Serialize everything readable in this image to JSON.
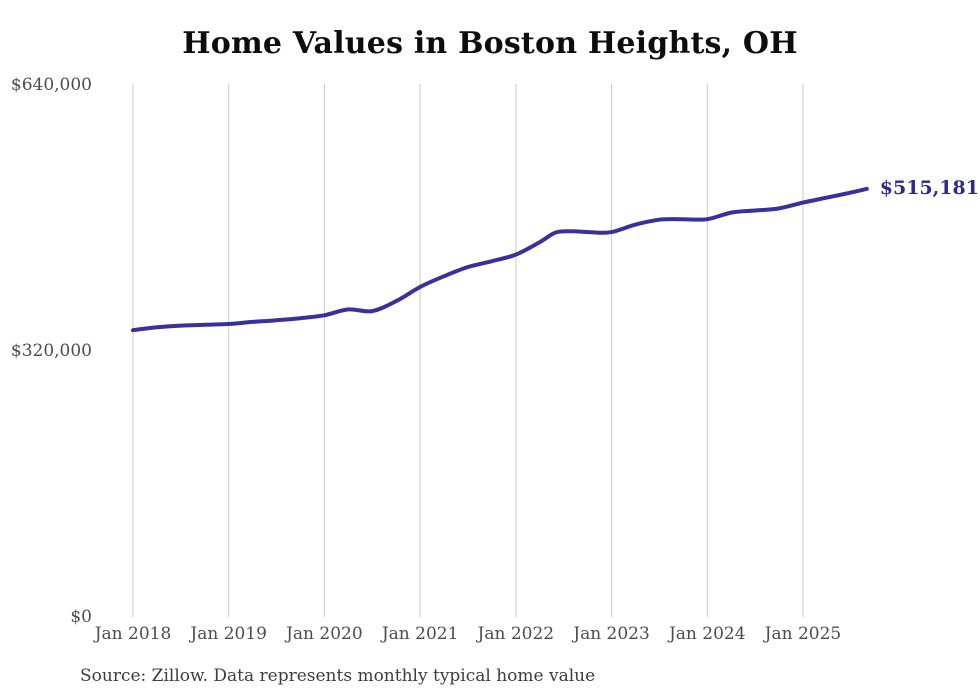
{
  "chart": {
    "title": "Home Values in Boston Heights, OH",
    "latest_label": "$515,181",
    "source": "Source: Zillow. Data represents monthly typical home value",
    "colors": {
      "line": "#38309e",
      "latest_label": "#2e2a8f",
      "gridline": "#c9c9c9",
      "axis_text": "#4d4d4d",
      "title_text": "#0d0d0d"
    }
  },
  "chart_data": {
    "type": "line",
    "title": "Home Values in Boston Heights, OH",
    "xlabel": "",
    "ylabel": "",
    "ylim": [
      0,
      640000
    ],
    "y_ticks": [
      {
        "value": 0,
        "label": "$0"
      },
      {
        "value": 320000,
        "label": "$320,000"
      },
      {
        "value": 640000,
        "label": "$640,000"
      }
    ],
    "x_ticks": [
      "Jan 2018",
      "Jan 2019",
      "Jan 2020",
      "Jan 2021",
      "Jan 2022",
      "Jan 2023",
      "Jan 2024",
      "Jan 2025"
    ],
    "grid": "vertical-only",
    "legend": "none",
    "annotation": "$515,181",
    "series": [
      {
        "name": "Typical home value",
        "points": [
          {
            "date": "Jan 2018",
            "value": 345000
          },
          {
            "date": "Apr 2018",
            "value": 348500
          },
          {
            "date": "Jul 2018",
            "value": 350500
          },
          {
            "date": "Oct 2018",
            "value": 351500
          },
          {
            "date": "Jan 2019",
            "value": 352500
          },
          {
            "date": "Apr 2019",
            "value": 355000
          },
          {
            "date": "Jul 2019",
            "value": 357000
          },
          {
            "date": "Oct 2019",
            "value": 359500
          },
          {
            "date": "Jan 2020",
            "value": 363000
          },
          {
            "date": "Apr 2020",
            "value": 370000
          },
          {
            "date": "Jul 2020",
            "value": 368000
          },
          {
            "date": "Oct 2020",
            "value": 380000
          },
          {
            "date": "Jan 2021",
            "value": 397000
          },
          {
            "date": "Apr 2021",
            "value": 410000
          },
          {
            "date": "Jul 2021",
            "value": 421000
          },
          {
            "date": "Oct 2021",
            "value": 428000
          },
          {
            "date": "Jan 2022",
            "value": 436000
          },
          {
            "date": "Apr 2022",
            "value": 451000
          },
          {
            "date": "Jun 2022",
            "value": 462500
          },
          {
            "date": "Aug 2022",
            "value": 464000
          },
          {
            "date": "Nov 2022",
            "value": 462500
          },
          {
            "date": "Jan 2023",
            "value": 463000
          },
          {
            "date": "Apr 2023",
            "value": 472000
          },
          {
            "date": "Jul 2023",
            "value": 478000
          },
          {
            "date": "Oct 2023",
            "value": 478500
          },
          {
            "date": "Jan 2024",
            "value": 478500
          },
          {
            "date": "Apr 2024",
            "value": 486500
          },
          {
            "date": "Jul 2024",
            "value": 489000
          },
          {
            "date": "Oct 2024",
            "value": 491500
          },
          {
            "date": "Jan 2025",
            "value": 498500
          },
          {
            "date": "Apr 2025",
            "value": 504500
          },
          {
            "date": "Jul 2025",
            "value": 510500
          },
          {
            "date": "Sep 2025",
            "value": 515181
          }
        ]
      }
    ]
  }
}
